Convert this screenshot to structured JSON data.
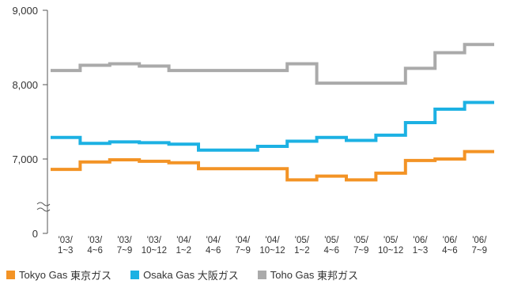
{
  "chart_data": {
    "type": "line",
    "title": "",
    "xlabel": "",
    "ylabel": "",
    "categories": [
      [
        "'03/",
        "1~3"
      ],
      [
        "'03/",
        "4~6"
      ],
      [
        "'03/",
        "7~9"
      ],
      [
        "'03/",
        "10~12"
      ],
      [
        "'04/",
        "1~2"
      ],
      [
        "'04/",
        "4~6"
      ],
      [
        "'04/",
        "7~9"
      ],
      [
        "'04/",
        "10~12"
      ],
      [
        "'05/",
        "1~2"
      ],
      [
        "'05/",
        "4~6"
      ],
      [
        "'05/",
        "7~9"
      ],
      [
        "'05/",
        "10~12"
      ],
      [
        "'06/",
        "1~3"
      ],
      [
        "'06/",
        "4~6"
      ],
      [
        "'06/",
        "7~9"
      ]
    ],
    "y_ticks": [
      {
        "value": 0,
        "label": "0"
      },
      {
        "value": 7000,
        "label": "7,000"
      },
      {
        "value": 8000,
        "label": "8,000"
      },
      {
        "value": 9000,
        "label": "9,000"
      }
    ],
    "axis_break": true,
    "ylim": [
      6500,
      9000
    ],
    "step": true,
    "grid": false,
    "legend_position": "bottom-left",
    "series": [
      {
        "name": "Tokyo Gas",
        "name_jp": "東京ガス",
        "color": "#f39325",
        "values": [
          6860,
          6960,
          6990,
          6970,
          6950,
          6870,
          6870,
          6870,
          6720,
          6770,
          6720,
          6810,
          6980,
          7000,
          7100
        ]
      },
      {
        "name": "Osaka Gas",
        "name_jp": "大阪ガス",
        "color": "#1cb1e3",
        "values": [
          7290,
          7210,
          7230,
          7220,
          7200,
          7120,
          7120,
          7170,
          7240,
          7290,
          7250,
          7320,
          7490,
          7670,
          7760
        ]
      },
      {
        "name": "Toho Gas",
        "name_jp": "東邦ガス",
        "color": "#aaaaaa",
        "values": [
          8190,
          8260,
          8280,
          8250,
          8190,
          8190,
          8190,
          8190,
          8280,
          8020,
          8020,
          8020,
          8220,
          8430,
          8540
        ]
      }
    ]
  }
}
